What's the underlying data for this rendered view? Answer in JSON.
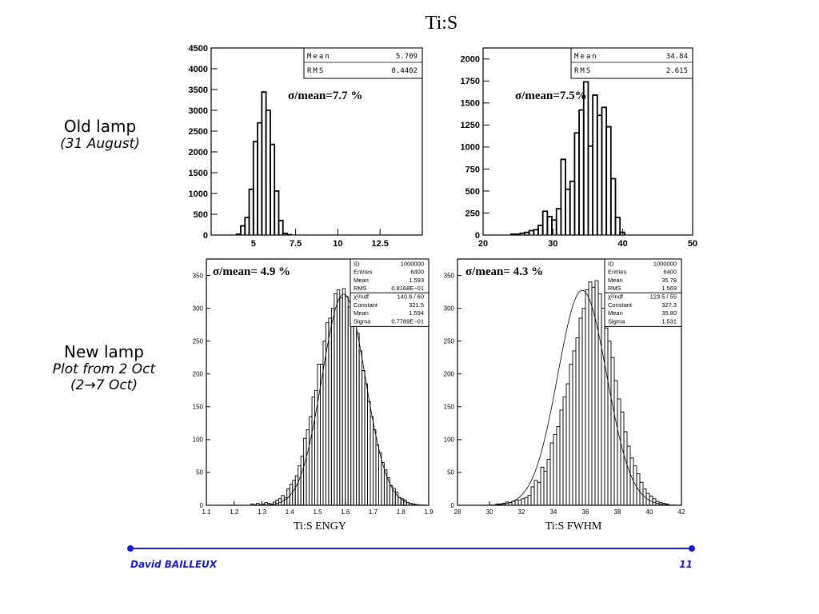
{
  "page": {
    "title": "Ti:S"
  },
  "side_labels": {
    "old": {
      "line1": "Old lamp",
      "line2": "(31 August)"
    },
    "new": {
      "line1": "New lamp",
      "line2": "Plot from 2 Oct",
      "line3": "(2→7 Oct)"
    }
  },
  "footer": {
    "author": "David BAILLEUX",
    "page_number": "11"
  },
  "chart_data": [
    {
      "id": "old-engy",
      "type": "bar",
      "subtype": "histogram",
      "title": "",
      "xlabel": "",
      "ylabel": "",
      "annotation": "σ/mean=7.7 %",
      "stats": [
        [
          "Mean",
          "5.709"
        ],
        [
          "RMS",
          "0.4402"
        ]
      ],
      "xlim": [
        2.5,
        15
      ],
      "ylim": [
        0,
        4500
      ],
      "xticks": [
        5,
        7.5,
        10,
        12.5
      ],
      "yticks": [
        0,
        500,
        1000,
        1500,
        2000,
        2500,
        3000,
        3500,
        4000,
        4500
      ],
      "bin_width": 0.25,
      "x": [
        4.0,
        4.25,
        4.5,
        4.75,
        5.0,
        5.25,
        5.5,
        5.75,
        6.0,
        6.25,
        6.5,
        6.75,
        7.0
      ],
      "values": [
        20,
        220,
        420,
        1100,
        2250,
        2700,
        3440,
        3000,
        2180,
        1060,
        350,
        40,
        10
      ]
    },
    {
      "id": "old-fwhm",
      "type": "bar",
      "subtype": "histogram",
      "title": "",
      "xlabel": "",
      "ylabel": "",
      "annotation": "σ/mean=7.5%",
      "stats": [
        [
          "Mean",
          "34.84"
        ],
        [
          "RMS",
          "2.615"
        ]
      ],
      "xlim": [
        20,
        50
      ],
      "ylim": [
        0,
        2125
      ],
      "xticks": [
        20,
        30,
        40,
        50
      ],
      "yticks": [
        0,
        250,
        500,
        750,
        1000,
        1250,
        1500,
        1750,
        2000
      ],
      "bin_width": 0.65,
      "x": [
        24.0,
        24.65,
        25.3,
        25.95,
        26.6,
        27.25,
        27.9,
        28.55,
        29.2,
        29.85,
        30.5,
        31.15,
        31.8,
        32.45,
        33.1,
        33.75,
        34.4,
        35.05,
        35.7,
        36.35,
        37.0,
        37.65,
        38.3,
        38.95,
        39.6
      ],
      "values": [
        10,
        10,
        20,
        30,
        50,
        60,
        110,
        270,
        210,
        170,
        300,
        860,
        520,
        610,
        1160,
        1420,
        1740,
        1010,
        1590,
        1360,
        1450,
        1230,
        640,
        200,
        30
      ]
    },
    {
      "id": "new-engy",
      "type": "bar",
      "subtype": "histogram",
      "title": "",
      "xlabel": "Ti:S ENGY",
      "ylabel": "",
      "annotation": "σ/mean= 4.9 %",
      "stats": [
        [
          "ID",
          "1000000"
        ],
        [
          "Entries",
          "6400"
        ],
        [
          "Mean",
          "1.593"
        ],
        [
          "RMS",
          "0.8168E−01"
        ],
        [
          "χ²/ndf",
          "140.6  /  60"
        ],
        [
          "Constant",
          "321.5"
        ],
        [
          "Mean",
          "1.594"
        ],
        [
          "Sigma",
          "0.7789E−01"
        ]
      ],
      "xlim": [
        1.1,
        1.9
      ],
      "ylim": [
        0,
        375
      ],
      "xticks": [
        1.1,
        1.2,
        1.3,
        1.4,
        1.5,
        1.6,
        1.7,
        1.8,
        1.9
      ],
      "yticks": [
        0,
        50,
        100,
        150,
        200,
        250,
        300,
        350
      ],
      "bin_width": 0.01,
      "x": [
        1.26,
        1.27,
        1.28,
        1.29,
        1.3,
        1.31,
        1.32,
        1.33,
        1.34,
        1.35,
        1.36,
        1.37,
        1.38,
        1.39,
        1.4,
        1.41,
        1.42,
        1.43,
        1.44,
        1.45,
        1.46,
        1.47,
        1.48,
        1.49,
        1.5,
        1.51,
        1.52,
        1.53,
        1.54,
        1.55,
        1.56,
        1.57,
        1.58,
        1.59,
        1.6,
        1.61,
        1.62,
        1.63,
        1.64,
        1.65,
        1.66,
        1.67,
        1.68,
        1.69,
        1.7,
        1.71,
        1.72,
        1.73,
        1.74,
        1.75,
        1.76,
        1.77,
        1.78,
        1.79,
        1.8,
        1.81,
        1.82,
        1.83,
        1.84,
        1.85
      ],
      "values": [
        2,
        1,
        3,
        1,
        2,
        4,
        3,
        2,
        5,
        8,
        10,
        15,
        12,
        25,
        32,
        38,
        45,
        60,
        75,
        102,
        115,
        135,
        165,
        175,
        215,
        215,
        250,
        278,
        285,
        300,
        322,
        328,
        316,
        330,
        318,
        302,
        272,
        278,
        262,
        235,
        205,
        185,
        158,
        135,
        115,
        92,
        80,
        65,
        54,
        42,
        30,
        26,
        20,
        12,
        10,
        8,
        4,
        3,
        2,
        1
      ]
    },
    {
      "id": "new-fwhm",
      "type": "bar",
      "subtype": "histogram",
      "title": "",
      "xlabel": "Ti:S FWHM",
      "ylabel": "",
      "annotation": "σ/mean= 4.3 %",
      "stats": [
        [
          "ID",
          "1000000"
        ],
        [
          "Entries",
          "6400"
        ],
        [
          "Mean",
          "35.78"
        ],
        [
          "RMS",
          "1.569"
        ],
        [
          "χ²/ndf",
          "123.5  /  55"
        ],
        [
          "Constant",
          "327.3"
        ],
        [
          "Mean",
          "35.80"
        ],
        [
          "Sigma",
          "1.531"
        ]
      ],
      "xlim": [
        28,
        42
      ],
      "ylim": [
        0,
        375
      ],
      "xticks": [
        28,
        30,
        32,
        34,
        36,
        38,
        40,
        42
      ],
      "yticks": [
        0,
        50,
        100,
        150,
        200,
        250,
        300,
        350
      ],
      "bin_width": 0.2,
      "x": [
        30.4,
        30.6,
        30.8,
        31.0,
        31.2,
        31.4,
        31.6,
        31.8,
        32.0,
        32.2,
        32.4,
        32.6,
        32.8,
        33.0,
        33.2,
        33.4,
        33.6,
        33.8,
        34.0,
        34.2,
        34.4,
        34.6,
        34.8,
        35.0,
        35.2,
        35.4,
        35.6,
        35.8,
        36.0,
        36.2,
        36.4,
        36.6,
        36.8,
        37.0,
        37.2,
        37.4,
        37.6,
        37.8,
        38.0,
        38.2,
        38.4,
        38.6,
        38.8,
        39.0,
        39.2,
        39.4,
        39.6,
        39.8,
        40.0,
        40.2,
        40.4,
        40.6,
        40.8,
        41.0
      ],
      "values": [
        2,
        2,
        3,
        5,
        4,
        6,
        8,
        8,
        10,
        12,
        15,
        28,
        38,
        35,
        58,
        52,
        70,
        95,
        108,
        120,
        145,
        165,
        185,
        215,
        235,
        255,
        285,
        300,
        328,
        340,
        332,
        342,
        322,
        300,
        270,
        250,
        225,
        190,
        162,
        142,
        112,
        90,
        72,
        60,
        48,
        35,
        25,
        18,
        14,
        10,
        6,
        4,
        3,
        2
      ]
    }
  ]
}
